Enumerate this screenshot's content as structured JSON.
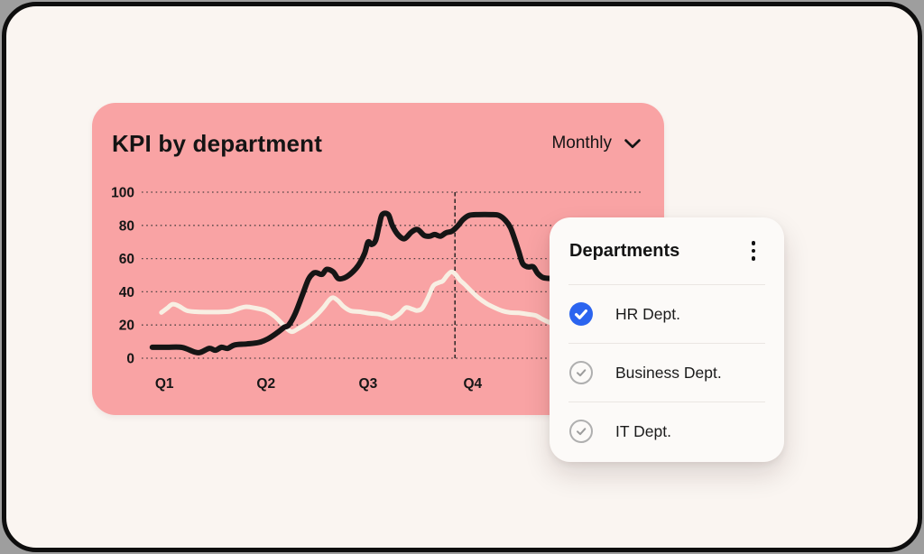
{
  "card": {
    "title": "KPI by department",
    "period": {
      "value": "Monthly",
      "icon": "chevron-down-icon"
    }
  },
  "panel": {
    "title": "Departments",
    "menu_icon": "kebab-menu-icon",
    "items": [
      {
        "label": "HR Dept.",
        "checked": true
      },
      {
        "label": "Business Dept.",
        "checked": false
      },
      {
        "label": "IT Dept.",
        "checked": false
      }
    ]
  },
  "colors": {
    "pink": "#F9A3A4",
    "frame-bg": "#FAF5F1",
    "panel-bg": "#FCFAF8",
    "blue": "#2B64EF",
    "ink": "#151515",
    "cream": "#F8EFE3"
  },
  "chart_data": {
    "type": "line",
    "title": "KPI by department",
    "xlabel": "",
    "ylabel": "",
    "ylim": [
      0,
      100
    ],
    "grid": "dotted-horizontal",
    "legend": "none",
    "y_ticks": [
      0,
      20,
      40,
      60,
      80,
      100
    ],
    "x_ticks": [
      {
        "label": "Q1",
        "pct": 4.5
      },
      {
        "label": "Q2",
        "pct": 24.6
      },
      {
        "label": "Q3",
        "pct": 44.8
      },
      {
        "label": "Q4",
        "pct": 65.5
      }
    ],
    "marker_line": {
      "pct": 62,
      "style": "dashed-vertical"
    },
    "series": [
      {
        "id": "cream-line",
        "color": "#F8EFE3",
        "width": 5,
        "points": [
          [
            3.9,
            27.5
          ],
          [
            5,
            30
          ],
          [
            6.1,
            32.5
          ],
          [
            7.3,
            31.5
          ],
          [
            8.9,
            28.7
          ],
          [
            10.7,
            28
          ],
          [
            12.9,
            27.8
          ],
          [
            15.2,
            27.8
          ],
          [
            17.5,
            28.2
          ],
          [
            19.3,
            30
          ],
          [
            20.7,
            31
          ],
          [
            22.5,
            30.2
          ],
          [
            24.5,
            28.7
          ],
          [
            26.4,
            25
          ],
          [
            28.2,
            19.5
          ],
          [
            29.6,
            16
          ],
          [
            31.1,
            18
          ],
          [
            32.9,
            21.5
          ],
          [
            34.6,
            26
          ],
          [
            36.1,
            31
          ],
          [
            37.1,
            35
          ],
          [
            37.9,
            36.5
          ],
          [
            38.9,
            34.5
          ],
          [
            40,
            31
          ],
          [
            41.4,
            28.5
          ],
          [
            43.2,
            28
          ],
          [
            45.2,
            27
          ],
          [
            47,
            26.5
          ],
          [
            48.6,
            25
          ],
          [
            49.6,
            24
          ],
          [
            51.1,
            27
          ],
          [
            52.3,
            30.5
          ],
          [
            53.6,
            29.5
          ],
          [
            54.5,
            28.7
          ],
          [
            55.5,
            30
          ],
          [
            56.6,
            36
          ],
          [
            57.7,
            43.5
          ],
          [
            58.8,
            45.5
          ],
          [
            59.6,
            46.5
          ],
          [
            60.5,
            50
          ],
          [
            61.3,
            52
          ],
          [
            62.1,
            50.5
          ],
          [
            63,
            47
          ],
          [
            63.9,
            44.5
          ],
          [
            65.2,
            40.5
          ],
          [
            66.6,
            36.5
          ],
          [
            68.2,
            33
          ],
          [
            69.8,
            30.5
          ],
          [
            71.4,
            28.5
          ],
          [
            72.9,
            27.5
          ],
          [
            74.6,
            27.3
          ],
          [
            76.4,
            26.5
          ],
          [
            77.9,
            25.8
          ],
          [
            79.3,
            23.5
          ],
          [
            80.7,
            21.5
          ],
          [
            82.1,
            20
          ],
          [
            83.6,
            19
          ]
        ]
      },
      {
        "id": "black-line",
        "color": "#151515",
        "width": 6,
        "points": [
          [
            2.1,
            6.6
          ],
          [
            5,
            6.6
          ],
          [
            8,
            6.5
          ],
          [
            10.4,
            3.8
          ],
          [
            11.6,
            3.5
          ],
          [
            13.4,
            5.9
          ],
          [
            14.6,
            4.8
          ],
          [
            15.8,
            6.6
          ],
          [
            17,
            5.9
          ],
          [
            18.4,
            8
          ],
          [
            20.8,
            8.6
          ],
          [
            23.2,
            9.5
          ],
          [
            25,
            11.7
          ],
          [
            26.8,
            15.3
          ],
          [
            28.2,
            18.6
          ],
          [
            29.1,
            20
          ],
          [
            30.4,
            27
          ],
          [
            31.8,
            38
          ],
          [
            33,
            47.5
          ],
          [
            33.9,
            51
          ],
          [
            34.6,
            51.5
          ],
          [
            35.7,
            50.5
          ],
          [
            36.6,
            53.5
          ],
          [
            37.9,
            52
          ],
          [
            38.9,
            48
          ],
          [
            40.2,
            48.5
          ],
          [
            41.6,
            51.5
          ],
          [
            42.9,
            56
          ],
          [
            44.1,
            63
          ],
          [
            44.8,
            70
          ],
          [
            45.5,
            68.5
          ],
          [
            46.3,
            71
          ],
          [
            47,
            80
          ],
          [
            47.6,
            86.5
          ],
          [
            48.8,
            86.5
          ],
          [
            49.6,
            80
          ],
          [
            50.7,
            74.5
          ],
          [
            52,
            72
          ],
          [
            53.4,
            76
          ],
          [
            54.6,
            77.5
          ],
          [
            55.9,
            74
          ],
          [
            57,
            73.5
          ],
          [
            58,
            74.5
          ],
          [
            59.1,
            73.5
          ],
          [
            60.2,
            75.5
          ],
          [
            61.4,
            76.5
          ],
          [
            62.5,
            79.5
          ],
          [
            63.6,
            83.5
          ],
          [
            64.8,
            86
          ],
          [
            66.6,
            86.5
          ],
          [
            69.1,
            86.5
          ],
          [
            70.7,
            86
          ],
          [
            72,
            83
          ],
          [
            73,
            78.5
          ],
          [
            73.9,
            71
          ],
          [
            74.6,
            64.5
          ],
          [
            75.4,
            57
          ],
          [
            76.4,
            55
          ],
          [
            77.5,
            55
          ],
          [
            78.4,
            51
          ],
          [
            79.5,
            48.5
          ],
          [
            81.3,
            48
          ],
          [
            83.6,
            48
          ]
        ]
      }
    ]
  }
}
